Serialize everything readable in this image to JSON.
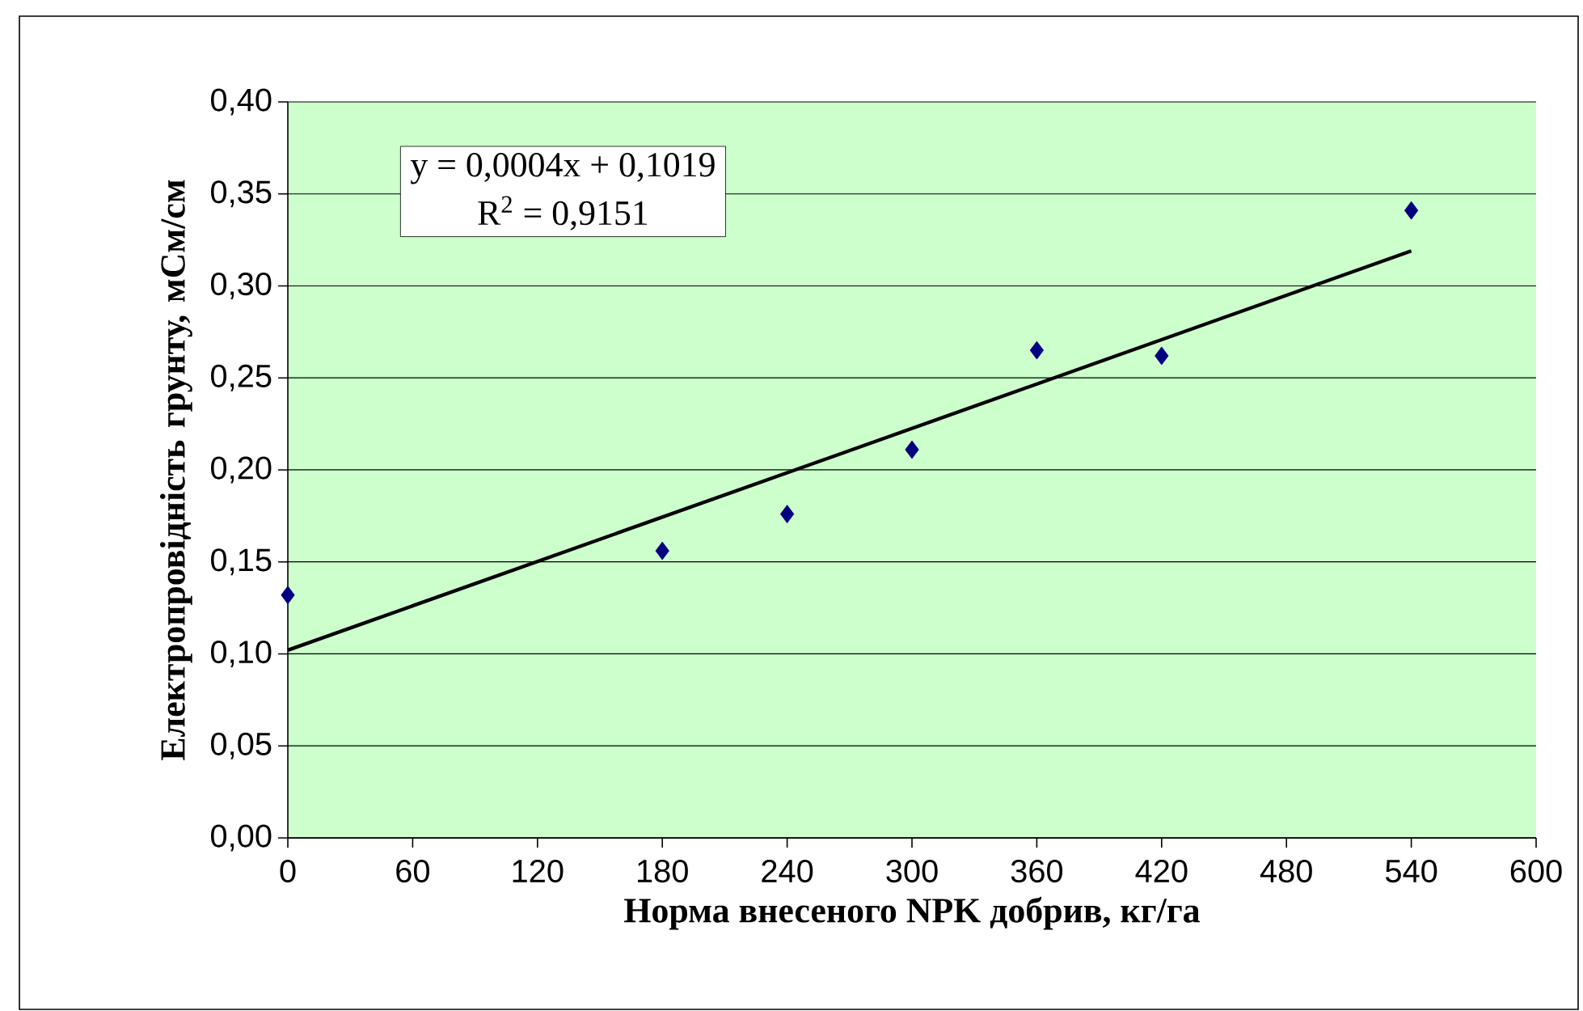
{
  "chart_data": {
    "type": "scatter",
    "xlabel": "Норма внесеного NPK добрив, кг/га",
    "ylabel": "Електропровідність грунту, мСм/см",
    "xlim": [
      0,
      600
    ],
    "xticks": [
      0,
      60,
      120,
      180,
      240,
      300,
      360,
      420,
      480,
      540,
      600
    ],
    "ylim": [
      0,
      0.4
    ],
    "yticks": [
      {
        "value": 0,
        "label": "0,00"
      },
      {
        "value": 0.05,
        "label": "0,05"
      },
      {
        "value": 0.1,
        "label": "0,10"
      },
      {
        "value": 0.15,
        "label": "0,15"
      },
      {
        "value": 0.2,
        "label": "0,20"
      },
      {
        "value": 0.25,
        "label": "0,25"
      },
      {
        "value": 0.3,
        "label": "0,30"
      },
      {
        "value": 0.35,
        "label": "0,35"
      },
      {
        "value": 0.4,
        "label": "0,40"
      }
    ],
    "grid": "y",
    "series": [
      {
        "color": "#000080",
        "marker": "diamond",
        "x": [
          0,
          180,
          240,
          300,
          360,
          420,
          540
        ],
        "values": [
          0.132,
          0.156,
          0.176,
          0.211,
          0.265,
          0.262,
          0.341
        ]
      },
      {
        "type": "line",
        "color": "#000000",
        "marker": "none",
        "line_style": "solid",
        "x": [
          0,
          540
        ],
        "values": [
          0.102,
          0.319
        ]
      }
    ],
    "annotations": [
      "y = 0,0004x + 0,1019",
      "R$^{2}$ = 0,9151"
    ]
  }
}
